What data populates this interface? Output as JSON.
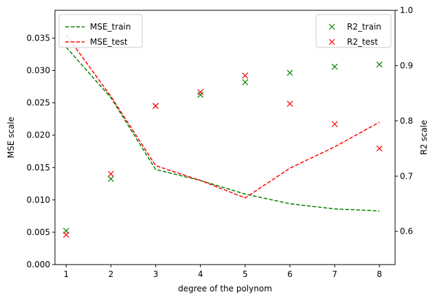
{
  "chart_data": {
    "type": "line",
    "xlabel": "degree of the polynom",
    "y_left_label": "MSE scale",
    "y_right_label": "R2 scale",
    "x": [
      1,
      2,
      3,
      4,
      5,
      6,
      7,
      8
    ],
    "x_range": [
      0.75,
      8.35
    ],
    "y_left_range": [
      0,
      0.0393
    ],
    "y_right_range": [
      0.54,
      1.0
    ],
    "y_left_ticks": [
      0.0,
      0.005,
      0.01,
      0.015,
      0.02,
      0.025,
      0.03,
      0.035
    ],
    "y_left_tick_labels": [
      "0.000",
      "0.005",
      "0.010",
      "0.015",
      "0.020",
      "0.025",
      "0.030",
      "0.035"
    ],
    "y_right_ticks": [
      0.6,
      0.7,
      0.8,
      0.9,
      1.0
    ],
    "y_right_tick_labels": [
      "0.6",
      "0.7",
      "0.8",
      "0.9",
      "1.0"
    ],
    "x_tick_labels": [
      "1",
      "2",
      "3",
      "4",
      "5",
      "6",
      "7",
      "8"
    ],
    "grid": false,
    "series": [
      {
        "name": "MSE_train",
        "axis": "left",
        "style": "dashed-line",
        "color": "#008000",
        "values": [
          0.0336,
          0.0258,
          0.0147,
          0.013,
          0.0109,
          0.0094,
          0.0086,
          0.0083
        ]
      },
      {
        "name": "MSE_test",
        "axis": "left",
        "style": "dashed-line",
        "color": "#ff0000",
        "values": [
          0.0355,
          0.026,
          0.0153,
          0.013,
          0.0103,
          0.0149,
          0.0182,
          0.022
        ]
      },
      {
        "name": "R2_train",
        "axis": "right",
        "style": "x-marker",
        "color": "#008000",
        "values": [
          0.601,
          0.695,
          0.827,
          0.847,
          0.87,
          0.887,
          0.898,
          0.902
        ]
      },
      {
        "name": "R2_test",
        "axis": "right",
        "style": "x-marker",
        "color": "#ff0000",
        "values": [
          0.594,
          0.704,
          0.827,
          0.852,
          0.882,
          0.831,
          0.794,
          0.75
        ]
      }
    ],
    "legend_left": {
      "placement": "top-left",
      "items": [
        "MSE_train",
        "MSE_test"
      ]
    },
    "legend_right": {
      "placement": "top-right",
      "items": [
        "R2_train",
        "R2_test"
      ]
    }
  }
}
